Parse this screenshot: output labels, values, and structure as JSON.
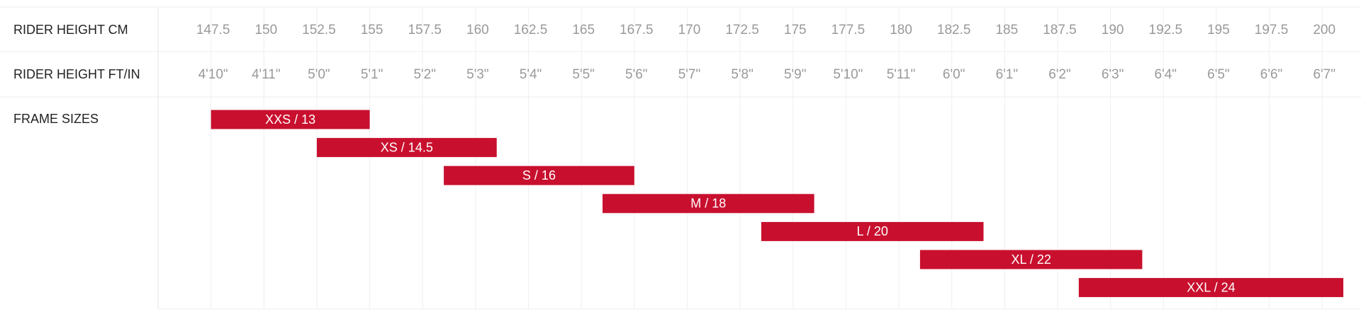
{
  "chart_data": {
    "type": "range-bar",
    "row_labels": [
      "RIDER HEIGHT CM",
      "RIDER HEIGHT FT/IN",
      "FRAME SIZES"
    ],
    "xlim": [
      145,
      201.5
    ],
    "xticks": [
      147.5,
      150,
      152.5,
      155,
      157.5,
      160,
      162.5,
      165,
      167.5,
      170,
      172.5,
      175,
      177.5,
      180,
      182.5,
      185,
      187.5,
      190,
      192.5,
      195,
      197.5,
      200
    ],
    "ft_in_labels": [
      "4'10\"",
      "4'11\"",
      "5'0\"",
      "5'1\"",
      "5'2\"",
      "5'3\"",
      "5'4\"",
      "5'5\"",
      "5'6\"",
      "5'7\"",
      "5'8\"",
      "5'9\"",
      "5'10\"",
      "5'11\"",
      "6'0\"",
      "6'1\"",
      "6'2\"",
      "6'3\"",
      "6'4\"",
      "6'5\"",
      "6'6\"",
      "6'7\""
    ],
    "categories": [
      "XXS / 13",
      "XS / 14.5",
      "S / 16",
      "M / 18",
      "L / 20",
      "XL / 22",
      "XXL / 24"
    ],
    "starts": [
      147.5,
      152.5,
      158.5,
      166,
      173.5,
      181,
      188.5
    ],
    "ends": [
      155,
      161,
      167.5,
      176,
      184,
      191.5,
      201
    ],
    "color": "#c8102e",
    "grid": true
  }
}
